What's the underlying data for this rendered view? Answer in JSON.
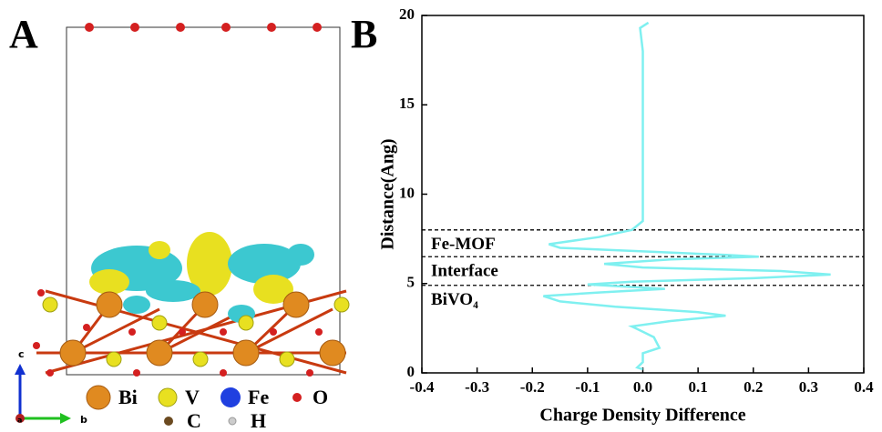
{
  "panel_a": {
    "label": "A",
    "legend": [
      "Bi",
      "V",
      "Fe",
      "O",
      "C",
      "H"
    ],
    "axes": [
      "c",
      "b",
      "a"
    ]
  },
  "chart_data": {
    "type": "line",
    "panel_label": "B",
    "x_label": "Charge Density Difference",
    "y_label": "Distance(Ang)",
    "xlim": [
      -0.4,
      0.4
    ],
    "ylim": [
      0,
      20
    ],
    "xticks": [
      -0.4,
      -0.3,
      -0.2,
      -0.1,
      {
        "value": 0,
        "label": "0.0"
      },
      0.1,
      0.2,
      0.3,
      0.4
    ],
    "yticks": [
      0,
      5,
      10,
      15,
      20
    ],
    "reference_lines": [
      8,
      6.5,
      4.9
    ],
    "annotations": [
      "Fe-MOF",
      "Interface",
      "BiVO₄"
    ],
    "series": [
      {
        "color": "#7ff0f0",
        "x": [
          0.01,
          -0.005,
          0,
          0,
          0,
          -0.02,
          -0.08,
          -0.17,
          -0.15,
          0,
          0.15,
          0.21,
          0.05,
          -0.07,
          0,
          0.25,
          0.34,
          0.2,
          -0.02,
          -0.1,
          0.04,
          -0.08,
          -0.18,
          -0.15,
          -0.05,
          0.1,
          0.15,
          0.05,
          -0.02,
          0,
          0.02,
          0.03,
          0,
          0,
          -0.01,
          0
        ],
        "values": [
          19.6,
          19.3,
          18,
          12,
          8.5,
          8,
          7.6,
          7.2,
          7,
          6.8,
          6.6,
          6.5,
          6.35,
          6.1,
          5.9,
          5.7,
          5.5,
          5.3,
          5.1,
          4.95,
          4.7,
          4.5,
          4.3,
          4,
          3.7,
          3.4,
          3.2,
          2.9,
          2.6,
          2.3,
          2,
          1.4,
          1.1,
          0.6,
          0.3,
          0.2
        ]
      }
    ]
  }
}
